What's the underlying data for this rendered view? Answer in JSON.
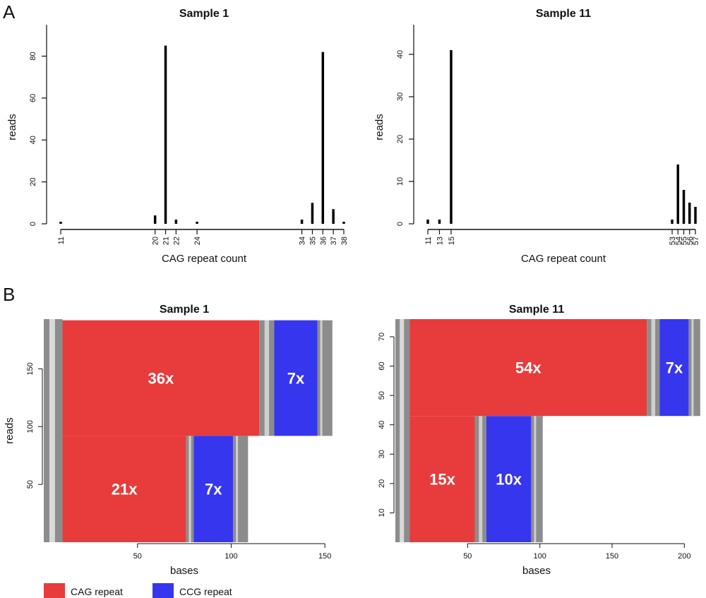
{
  "panels": {
    "a_letter": "A",
    "b_letter": "B"
  },
  "legend": [
    {
      "label": "CAG repeat",
      "color": "#e83b3b"
    },
    {
      "label": "CCG repeat",
      "color": "#3636ee"
    }
  ],
  "chart_data": [
    {
      "type": "bar",
      "panel": "A",
      "title": "Sample 1",
      "xlabel": "CAG repeat count",
      "ylabel": "reads",
      "xlim": [
        11,
        38
      ],
      "ylim": [
        0,
        95
      ],
      "yticks": [
        0,
        20,
        40,
        60,
        80
      ],
      "categories": [
        "11",
        "20",
        "21",
        "22",
        "24",
        "34",
        "35",
        "36",
        "37",
        "38"
      ],
      "x": [
        11,
        20,
        21,
        22,
        24,
        34,
        35,
        36,
        37,
        38
      ],
      "values": [
        1,
        4,
        85,
        2,
        1,
        2,
        10,
        82,
        7,
        1
      ]
    },
    {
      "type": "bar",
      "panel": "A",
      "title": "Sample 11",
      "xlabel": "CAG repeat count",
      "ylabel": "reads",
      "xlim": [
        11,
        57
      ],
      "ylim": [
        0,
        47
      ],
      "yticks": [
        0,
        10,
        20,
        30,
        40
      ],
      "categories": [
        "11",
        "13",
        "15",
        "53",
        "54",
        "55",
        "56",
        "57"
      ],
      "x": [
        11,
        13,
        15,
        53,
        54,
        55,
        56,
        57
      ],
      "values": [
        1,
        1,
        41,
        1,
        14,
        8,
        5,
        4
      ]
    },
    {
      "type": "heatmap",
      "panel": "B",
      "title": "Sample 1",
      "xlabel": "bases",
      "ylabel": "reads",
      "xlim": [
        0,
        165
      ],
      "ylim": [
        0,
        193
      ],
      "xticks": [
        50,
        100,
        150
      ],
      "yticks": [
        50,
        100,
        150
      ],
      "segments": [
        {
          "label": "21x",
          "repeat": "CAG",
          "reads": [
            0,
            92
          ],
          "bases": [
            10,
            76
          ]
        },
        {
          "label": "7x",
          "repeat": "CCG",
          "reads": [
            0,
            92
          ],
          "bases": [
            80,
            101
          ]
        },
        {
          "label": "36x",
          "repeat": "CAG",
          "reads": [
            92,
            192
          ],
          "bases": [
            10,
            115
          ]
        },
        {
          "label": "7x",
          "repeat": "CCG",
          "reads": [
            92,
            192
          ],
          "bases": [
            123,
            146
          ]
        }
      ]
    },
    {
      "type": "heatmap",
      "panel": "B",
      "title": "Sample 11",
      "xlabel": "bases",
      "ylabel": "reads",
      "xlim": [
        0,
        215
      ],
      "ylim": [
        0,
        76
      ],
      "xticks": [
        50,
        100,
        150,
        200
      ],
      "yticks": [
        10,
        20,
        30,
        40,
        50,
        60,
        70
      ],
      "segments": [
        {
          "label": "15x",
          "repeat": "CAG",
          "reads": [
            0,
            43
          ],
          "bases": [
            10,
            55
          ]
        },
        {
          "label": "10x",
          "repeat": "CCG",
          "reads": [
            0,
            43
          ],
          "bases": [
            63,
            94
          ]
        },
        {
          "label": "54x",
          "repeat": "CAG",
          "reads": [
            43,
            76
          ],
          "bases": [
            10,
            174
          ]
        },
        {
          "label": "7x",
          "repeat": "CCG",
          "reads": [
            43,
            76
          ],
          "bases": [
            183,
            203
          ]
        }
      ]
    }
  ]
}
